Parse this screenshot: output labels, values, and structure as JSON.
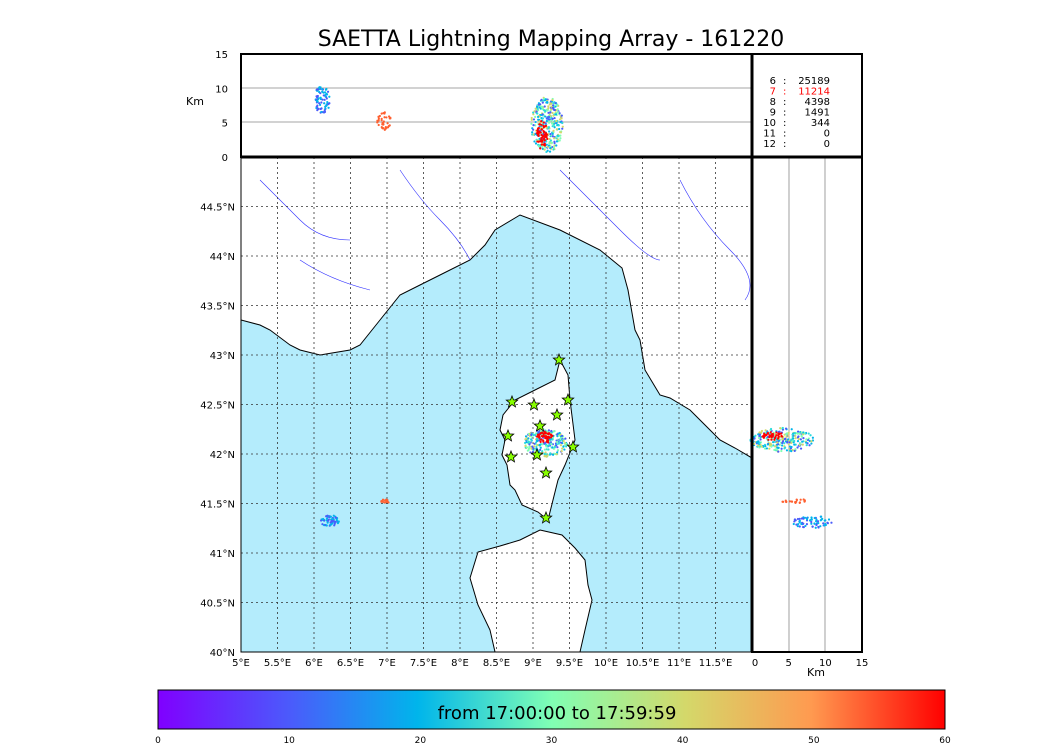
{
  "chart_data": {
    "type": "scatter",
    "title": "SAETTA Lightning Mapping Array - 161220",
    "map": {
      "lon_range": [
        5,
        12
      ],
      "lat_range": [
        40,
        45
      ],
      "xticks": [
        "5°E",
        "5.5°E",
        "6°E",
        "6.5°E",
        "7°E",
        "7.5°E",
        "8°E",
        "8.5°E",
        "9°E",
        "9.5°E",
        "10°E",
        "10.5°E",
        "11°E",
        "11.5°E"
      ],
      "yticks": [
        "40°N",
        "40.5°N",
        "41°N",
        "41.5°N",
        "42°N",
        "42.5°N",
        "43°N",
        "43.5°N",
        "44°N",
        "44.5°N"
      ],
      "sea_color": "#b4ecfc",
      "station_color": "#88ff00"
    },
    "altitude_panel": {
      "ylabel": "Km",
      "ylim": [
        0,
        15
      ],
      "yticks": [
        "0",
        "5",
        "10",
        "15"
      ]
    },
    "side_panel": {
      "xlabel": "Km",
      "xlim": [
        0,
        15
      ],
      "xticks": [
        "0",
        "5",
        "10",
        "15"
      ]
    },
    "station_counts": [
      {
        "n": "6",
        "sep": ":",
        "count": "25189",
        "highlight": false
      },
      {
        "n": "7",
        "sep": ":",
        "count": "11214",
        "highlight": true
      },
      {
        "n": "8",
        "sep": ":",
        "count": "4398",
        "highlight": false
      },
      {
        "n": "9",
        "sep": ":",
        "count": "1491",
        "highlight": false
      },
      {
        "n": "10",
        "sep": ":",
        "count": "344",
        "highlight": false
      },
      {
        "n": "11",
        "sep": ":",
        "count": "0",
        "highlight": false
      },
      {
        "n": "12",
        "sep": ":",
        "count": "0",
        "highlight": false
      }
    ],
    "colorbar": {
      "label": "from 17:00:00 to 17:59:59",
      "range": [
        0,
        60
      ],
      "ticks": [
        "0",
        "10",
        "20",
        "30",
        "40",
        "50",
        "60"
      ],
      "colormap": "rainbow"
    }
  }
}
